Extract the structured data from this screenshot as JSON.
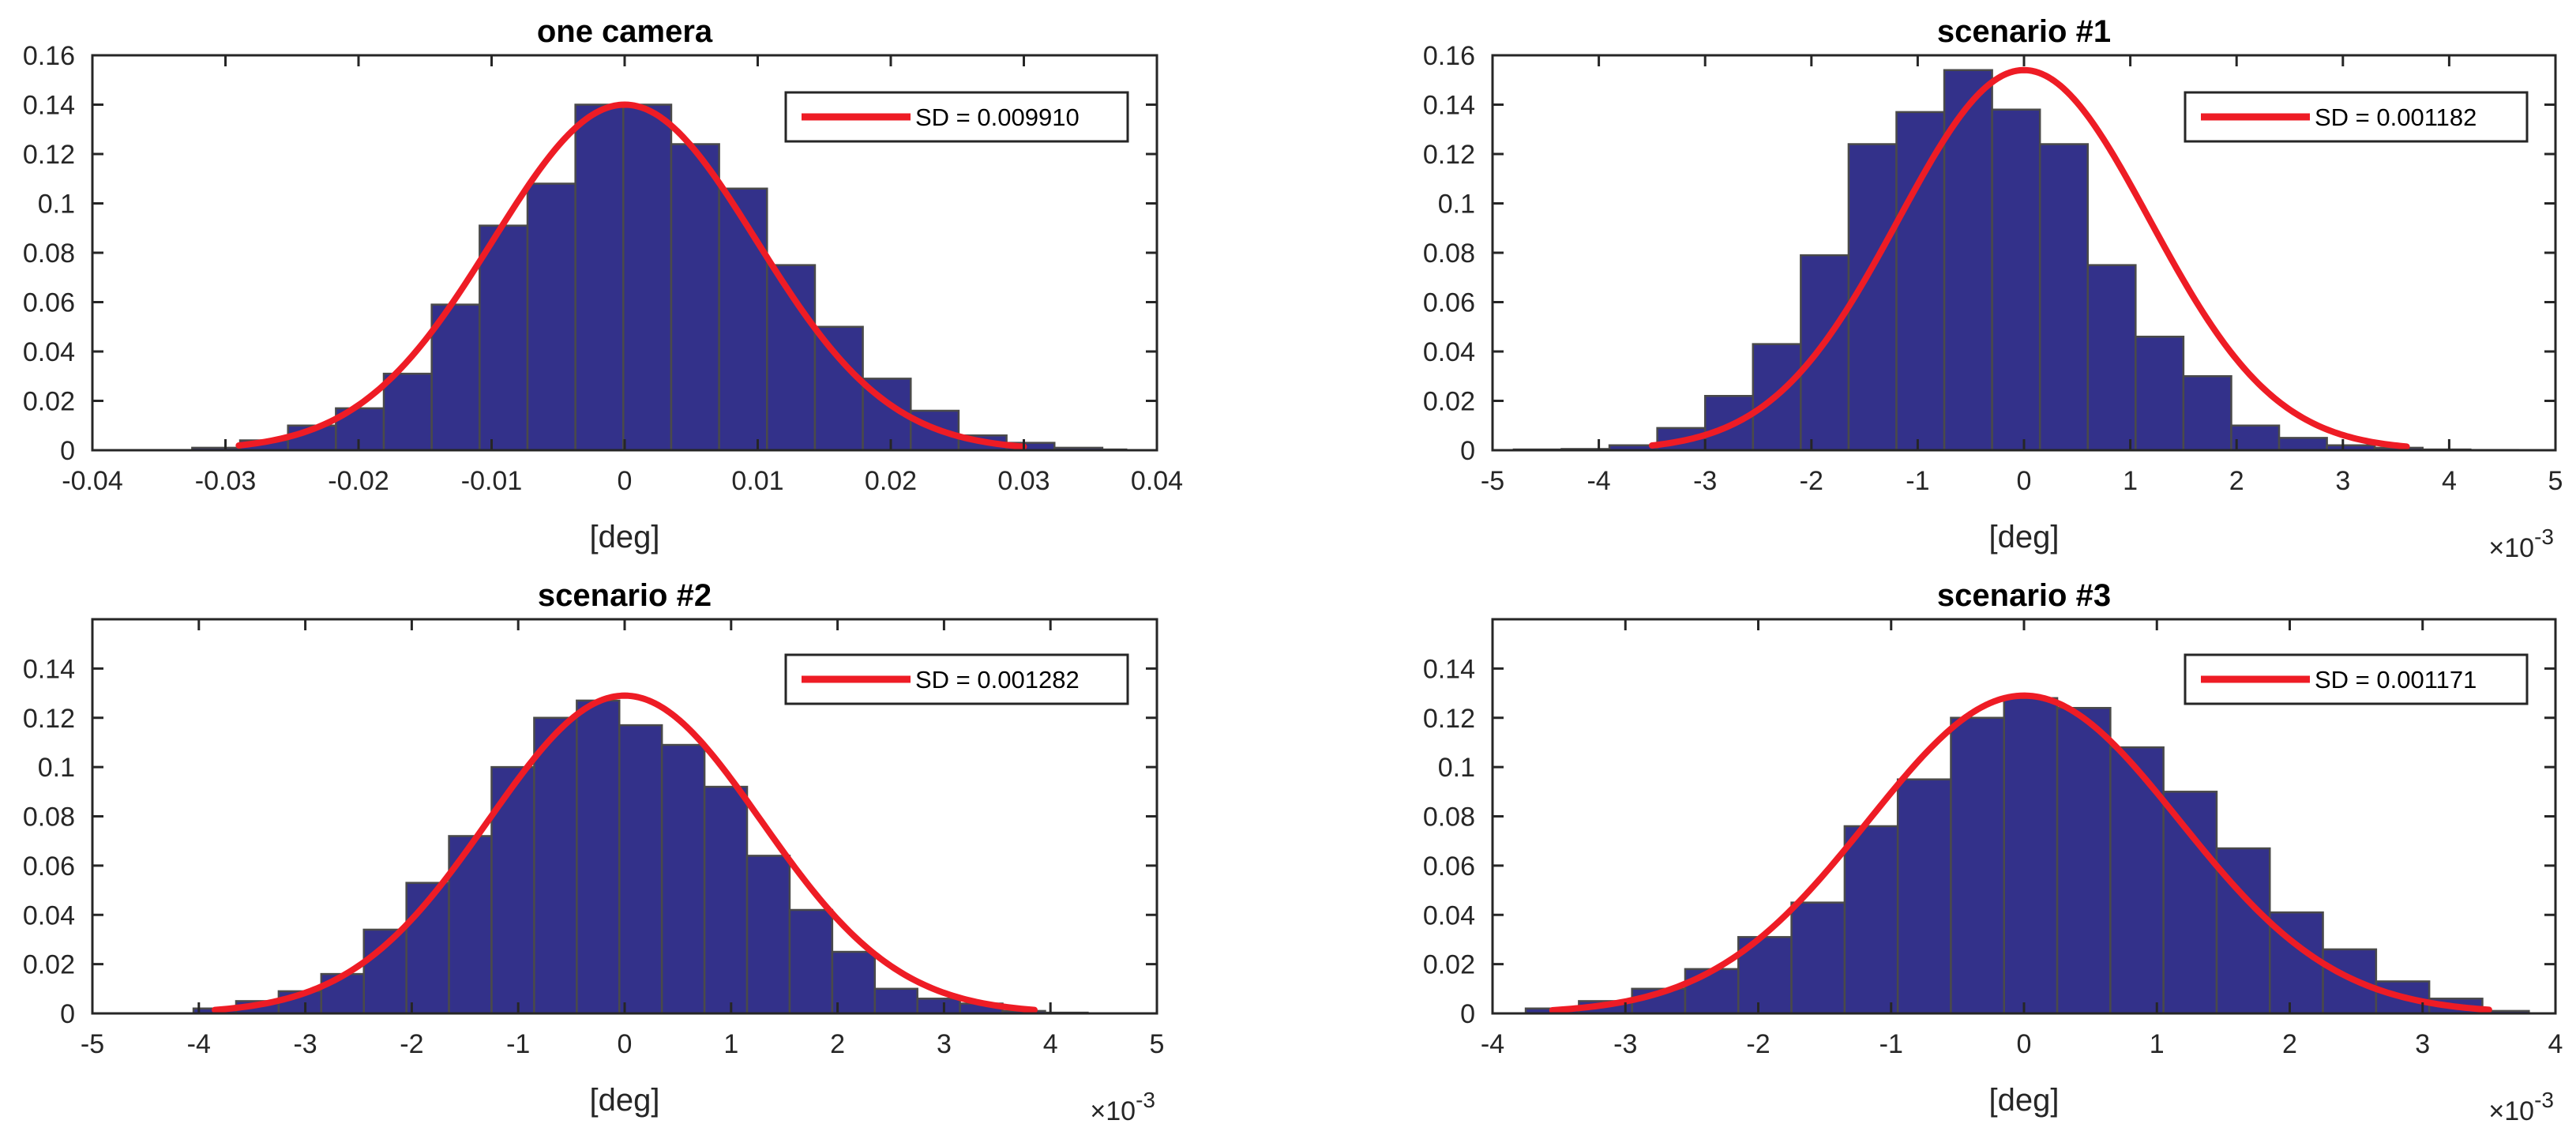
{
  "figure": {
    "colors": {
      "bar_fill": "#33318A",
      "bar_edge": "#4A4A4A",
      "curve": "#EE1C25",
      "axis": "#262626",
      "text": "#262626"
    }
  },
  "chart_data": [
    {
      "type": "bar",
      "title": "one camera",
      "xlabel": "[deg]",
      "ylabel": "",
      "xlim": [
        -0.04,
        0.04
      ],
      "ylim": [
        0,
        0.16
      ],
      "x_ticks": [
        -0.04,
        -0.03,
        -0.02,
        -0.01,
        0,
        0.01,
        0.02,
        0.03,
        0.04
      ],
      "x_tick_labels": [
        "-0.04",
        "-0.03",
        "-0.02",
        "-0.01",
        "0",
        "0.01",
        "0.02",
        "0.03",
        "0.04"
      ],
      "y_ticks": [
        0,
        0.02,
        0.04,
        0.06,
        0.08,
        0.1,
        0.12,
        0.14,
        0.16
      ],
      "y_tick_labels": [
        "0",
        "0.02",
        "0.04",
        "0.06",
        "0.08",
        "0.1",
        "0.12",
        "0.14",
        "0.16"
      ],
      "exponent_label": "",
      "bin_edges": [
        -0.0325,
        -0.0289,
        -0.0253,
        -0.0217,
        -0.0181,
        -0.0145,
        -0.0109,
        -0.0073,
        -0.0037,
        -0.0001,
        0.0035,
        0.0071,
        0.0107,
        0.0143,
        0.0179,
        0.0215,
        0.0251,
        0.0287,
        0.0323,
        0.0359,
        0.0377
      ],
      "values": [
        0.001,
        0.004,
        0.01,
        0.017,
        0.031,
        0.059,
        0.091,
        0.108,
        0.14,
        0.14,
        0.124,
        0.106,
        0.075,
        0.05,
        0.029,
        0.016,
        0.006,
        0.003,
        0.001,
        0.0003
      ],
      "series": [
        {
          "name": "SD = 0.009910",
          "type": "normal_fit",
          "mean": 0,
          "sd": 0.00991,
          "peak": 0.14,
          "range": [
            -0.029,
            0.03
          ]
        }
      ],
      "legend": {
        "label": "SD = 0.009910",
        "position": "top-right"
      }
    },
    {
      "type": "bar",
      "title": "scenario #1",
      "xlabel": "[deg]",
      "ylabel": "",
      "xlim": [
        -5,
        5
      ],
      "ylim": [
        0,
        0.16
      ],
      "x_ticks": [
        -5,
        -4,
        -3,
        -2,
        -1,
        0,
        1,
        2,
        3,
        4,
        5
      ],
      "x_tick_labels": [
        "-5",
        "-4",
        "-3",
        "-2",
        "-1",
        "0",
        "1",
        "2",
        "3",
        "4",
        "5"
      ],
      "y_ticks": [
        0,
        0.02,
        0.04,
        0.06,
        0.08,
        0.1,
        0.12,
        0.14,
        0.16
      ],
      "y_tick_labels": [
        "0",
        "0.02",
        "0.04",
        "0.06",
        "0.08",
        "0.1",
        "0.12",
        "0.14",
        "0.16"
      ],
      "exponent_label": "×10",
      "exponent_power": "-3",
      "bin_edges": [
        -4.8,
        -4.35,
        -3.9,
        -3.45,
        -3.0,
        -2.55,
        -2.1,
        -1.65,
        -1.2,
        -0.75,
        -0.3,
        0.15,
        0.6,
        1.05,
        1.5,
        1.95,
        2.4,
        2.85,
        3.3,
        3.75,
        4.2,
        4.65
      ],
      "values": [
        0.0003,
        0.0005,
        0.002,
        0.009,
        0.022,
        0.043,
        0.079,
        0.124,
        0.137,
        0.154,
        0.138,
        0.124,
        0.075,
        0.046,
        0.03,
        0.01,
        0.005,
        0.002,
        0.001,
        0.0003,
        0.0001
      ],
      "series": [
        {
          "name": "SD = 0.001182",
          "type": "normal_fit",
          "mean": 0,
          "sd": 1.182,
          "peak": 0.154,
          "range": [
            -3.5,
            3.6
          ]
        }
      ],
      "legend": {
        "label": "SD = 0.001182",
        "position": "top-right"
      }
    },
    {
      "type": "bar",
      "title": "scenario #2",
      "xlabel": "[deg]",
      "ylabel": "",
      "xlim": [
        -5,
        5
      ],
      "ylim": [
        0,
        0.16
      ],
      "x_ticks": [
        -5,
        -4,
        -3,
        -2,
        -1,
        0,
        1,
        2,
        3,
        4,
        5
      ],
      "x_tick_labels": [
        "-5",
        "-4",
        "-3",
        "-2",
        "-1",
        "0",
        "1",
        "2",
        "3",
        "4",
        "5"
      ],
      "y_ticks": [
        0,
        0.02,
        0.04,
        0.06,
        0.08,
        0.1,
        0.12,
        0.14
      ],
      "y_tick_labels": [
        "0",
        "0.02",
        "0.04",
        "0.06",
        "0.08",
        "0.1",
        "0.12",
        "0.14"
      ],
      "exponent_label": "×10",
      "exponent_power": "-3",
      "bin_edges": [
        -4.05,
        -3.65,
        -3.25,
        -2.85,
        -2.45,
        -2.05,
        -1.65,
        -1.25,
        -0.85,
        -0.45,
        -0.05,
        0.35,
        0.75,
        1.15,
        1.55,
        1.95,
        2.35,
        2.75,
        3.15,
        3.55,
        3.95,
        4.35
      ],
      "values": [
        0.002,
        0.005,
        0.009,
        0.016,
        0.034,
        0.053,
        0.072,
        0.1,
        0.12,
        0.127,
        0.117,
        0.109,
        0.092,
        0.064,
        0.042,
        0.025,
        0.01,
        0.006,
        0.004,
        0.001,
        0.0003
      ],
      "series": [
        {
          "name": "SD = 0.001282",
          "type": "normal_fit",
          "mean": 0,
          "sd": 1.282,
          "peak": 0.129,
          "range": [
            -3.85,
            3.85
          ]
        }
      ],
      "legend": {
        "label": "SD = 0.001282",
        "position": "top-right"
      }
    },
    {
      "type": "bar",
      "title": "scenario #3",
      "xlabel": "[deg]",
      "ylabel": "",
      "xlim": [
        -4,
        4
      ],
      "ylim": [
        0,
        0.16
      ],
      "x_ticks": [
        -4,
        -3,
        -2,
        -1,
        0,
        1,
        2,
        3,
        4
      ],
      "x_tick_labels": [
        "-4",
        "-3",
        "-2",
        "-1",
        "0",
        "1",
        "2",
        "3",
        "4"
      ],
      "y_ticks": [
        0,
        0.02,
        0.04,
        0.06,
        0.08,
        0.1,
        0.12,
        0.14
      ],
      "y_tick_labels": [
        "0",
        "0.02",
        "0.04",
        "0.06",
        "0.08",
        "0.1",
        "0.12",
        "0.14"
      ],
      "exponent_label": "×10",
      "exponent_power": "-3",
      "bin_edges": [
        -3.75,
        -3.35,
        -2.95,
        -2.55,
        -2.15,
        -1.75,
        -1.35,
        -0.95,
        -0.55,
        -0.15,
        0.25,
        0.65,
        1.05,
        1.45,
        1.85,
        2.25,
        2.65,
        3.05,
        3.45,
        3.8
      ],
      "values": [
        0.002,
        0.005,
        0.01,
        0.018,
        0.031,
        0.045,
        0.076,
        0.095,
        0.12,
        0.128,
        0.124,
        0.108,
        0.09,
        0.067,
        0.041,
        0.026,
        0.013,
        0.006,
        0.001
      ],
      "series": [
        {
          "name": "SD = 0.001171",
          "type": "normal_fit",
          "mean": 0,
          "sd": 1.171,
          "peak": 0.129,
          "range": [
            -3.55,
            3.5
          ]
        }
      ],
      "legend": {
        "label": "SD = 0.001171",
        "position": "top-right"
      }
    }
  ]
}
